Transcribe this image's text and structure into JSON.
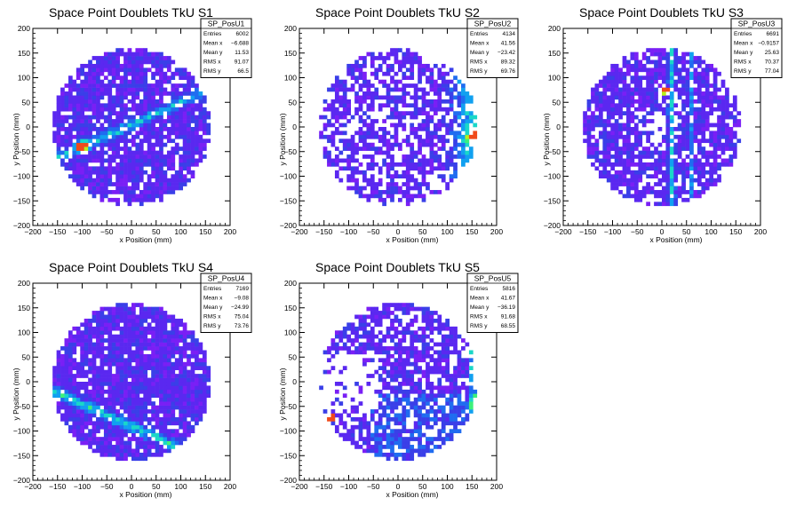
{
  "charts": [
    {
      "type": "heatmap",
      "title": "Space Point Doublets TkU S1",
      "xlabel": "x Position (mm)",
      "ylabel": "y Position (mm)",
      "xlim": [
        -200,
        200
      ],
      "ylim": [
        -200,
        200
      ],
      "x_ticks": [
        "−200",
        "−150",
        "−100",
        "−50",
        "0",
        "50",
        "100",
        "150",
        "200"
      ],
      "y_ticks": [
        "200",
        "150",
        "100",
        "50",
        "0",
        "−50",
        "−100",
        "−150",
        "−200"
      ],
      "stats": {
        "name": "SP_PosU1",
        "rows": [
          {
            "label": "Entries",
            "value": "6002"
          },
          {
            "label": "Mean x",
            "value": "−6.688"
          },
          {
            "label": "Mean y",
            "value": "11.53"
          },
          {
            "label": "RMS x",
            "value": "91.07"
          },
          {
            "label": "RMS y",
            "value": "66.5"
          }
        ]
      }
    },
    {
      "type": "heatmap",
      "title": "Space Point Doublets TkU S2",
      "xlabel": "x Position (mm)",
      "ylabel": "y Position (mm)",
      "xlim": [
        -200,
        200
      ],
      "ylim": [
        -200,
        200
      ],
      "x_ticks": [
        "−200",
        "−150",
        "−100",
        "−50",
        "0",
        "50",
        "100",
        "150",
        "200"
      ],
      "y_ticks": [
        "200",
        "150",
        "100",
        "50",
        "0",
        "−50",
        "−100",
        "−150",
        "−200"
      ],
      "stats": {
        "name": "SP_PosU2",
        "rows": [
          {
            "label": "Entries",
            "value": "4134"
          },
          {
            "label": "Mean x",
            "value": "41.56"
          },
          {
            "label": "Mean y",
            "value": "−23.42"
          },
          {
            "label": "RMS x",
            "value": "89.32"
          },
          {
            "label": "RMS y",
            "value": "69.76"
          }
        ]
      }
    },
    {
      "type": "heatmap",
      "title": "Space Point Doublets TkU S3",
      "xlabel": "x Position (mm)",
      "ylabel": "y Position (mm)",
      "xlim": [
        -200,
        200
      ],
      "ylim": [
        -200,
        200
      ],
      "x_ticks": [
        "−200",
        "−150",
        "−100",
        "−50",
        "0",
        "50",
        "100",
        "150",
        "200"
      ],
      "y_ticks": [
        "200",
        "150",
        "100",
        "50",
        "0",
        "−50",
        "−100",
        "−150",
        "−200"
      ],
      "stats": {
        "name": "SP_PosU3",
        "rows": [
          {
            "label": "Entries",
            "value": "6691"
          },
          {
            "label": "Mean x",
            "value": "−0.9157"
          },
          {
            "label": "Mean y",
            "value": "25.63"
          },
          {
            "label": "RMS x",
            "value": "70.37"
          },
          {
            "label": "RMS y",
            "value": "77.04"
          }
        ]
      }
    },
    {
      "type": "heatmap",
      "title": "Space Point Doublets TkU S4",
      "xlabel": "x Position (mm)",
      "ylabel": "y Position (mm)",
      "xlim": [
        -200,
        200
      ],
      "ylim": [
        -200,
        200
      ],
      "x_ticks": [
        "−200",
        "−150",
        "−100",
        "−50",
        "0",
        "50",
        "100",
        "150",
        "200"
      ],
      "y_ticks": [
        "200",
        "150",
        "100",
        "50",
        "0",
        "−50",
        "−100",
        "−150",
        "−200"
      ],
      "stats": {
        "name": "SP_PosU4",
        "rows": [
          {
            "label": "Entries",
            "value": "7169"
          },
          {
            "label": "Mean x",
            "value": "−9.08"
          },
          {
            "label": "Mean y",
            "value": "−24.99"
          },
          {
            "label": "RMS x",
            "value": "75.04"
          },
          {
            "label": "RMS y",
            "value": "73.76"
          }
        ]
      }
    },
    {
      "type": "heatmap",
      "title": "Space Point Doublets TkU S5",
      "xlabel": "x Position (mm)",
      "ylabel": "y Position (mm)",
      "xlim": [
        -200,
        200
      ],
      "ylim": [
        -200,
        200
      ],
      "x_ticks": [
        "−200",
        "−150",
        "−100",
        "−50",
        "0",
        "50",
        "100",
        "150",
        "200"
      ],
      "y_ticks": [
        "200",
        "150",
        "100",
        "50",
        "0",
        "−50",
        "−100",
        "−150",
        "−200"
      ],
      "stats": {
        "name": "SP_PosU5",
        "rows": [
          {
            "label": "Entries",
            "value": "5816"
          },
          {
            "label": "Mean x",
            "value": "41.67"
          },
          {
            "label": "Mean y",
            "value": "−36.19"
          },
          {
            "label": "RMS x",
            "value": "91.68"
          },
          {
            "label": "RMS y",
            "value": "68.55"
          }
        ]
      }
    }
  ],
  "chart_data": [
    {
      "type": "heatmap",
      "title": "Space Point Doublets TkU S1",
      "xlabel": "x Position (mm)",
      "ylabel": "y Position (mm)",
      "xlim": [
        -200,
        200
      ],
      "ylim": [
        -200,
        200
      ],
      "detector_radius": 160,
      "entries": 6002,
      "mean_x": -6.688,
      "mean_y": 11.53,
      "rms_x": 91.07,
      "rms_y": 66.5
    },
    {
      "type": "heatmap",
      "title": "Space Point Doublets TkU S2",
      "xlabel": "x Position (mm)",
      "ylabel": "y Position (mm)",
      "xlim": [
        -200,
        200
      ],
      "ylim": [
        -200,
        200
      ],
      "detector_radius": 160,
      "entries": 4134,
      "mean_x": 41.56,
      "mean_y": -23.42,
      "rms_x": 89.32,
      "rms_y": 69.76
    },
    {
      "type": "heatmap",
      "title": "Space Point Doublets TkU S3",
      "xlabel": "x Position (mm)",
      "ylabel": "y Position (mm)",
      "xlim": [
        -200,
        200
      ],
      "ylim": [
        -200,
        200
      ],
      "detector_radius": 160,
      "entries": 6691,
      "mean_x": -0.9157,
      "mean_y": 25.63,
      "rms_x": 70.37,
      "rms_y": 77.04
    },
    {
      "type": "heatmap",
      "title": "Space Point Doublets TkU S4",
      "xlabel": "x Position (mm)",
      "ylabel": "y Position (mm)",
      "xlim": [
        -200,
        200
      ],
      "ylim": [
        -200,
        200
      ],
      "detector_radius": 160,
      "entries": 7169,
      "mean_x": -9.08,
      "mean_y": -24.99,
      "rms_x": 75.04,
      "rms_y": 73.76
    },
    {
      "type": "heatmap",
      "title": "Space Point Doublets TkU S5",
      "xlabel": "x Position (mm)",
      "ylabel": "y Position (mm)",
      "xlim": [
        -200,
        200
      ],
      "ylim": [
        -200,
        200
      ],
      "detector_radius": 160,
      "entries": 5816,
      "mean_x": 41.67,
      "mean_y": -36.19,
      "rms_x": 91.68,
      "rms_y": 68.55
    }
  ],
  "colors": {
    "background": "#ffffff",
    "axis": "#000000",
    "palette": [
      "#7a1ff5",
      "#5a28f0",
      "#3a3fe8",
      "#1f6cf0",
      "#11a0f0",
      "#1ad7c8",
      "#3df07a",
      "#b8f01a",
      "#f04a1a"
    ],
    "hotspot": "#f02828"
  }
}
